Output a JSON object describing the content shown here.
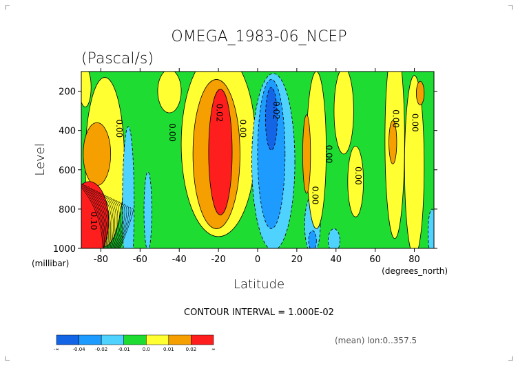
{
  "chart_data": {
    "type": "contour",
    "title": "OMEGA_1983-06_NCEP",
    "subtitle": "(Pascal/s)",
    "xlabel": "Latitude",
    "x_unit": "(degrees_north)",
    "ylabel": "Level",
    "y_unit": "(millibar)",
    "xlim": [
      -90,
      90
    ],
    "ylim": [
      1000,
      100
    ],
    "x_ticks": [
      -80,
      -60,
      -40,
      -20,
      0,
      20,
      40,
      60,
      80
    ],
    "y_ticks": [
      200,
      400,
      600,
      800,
      1000
    ],
    "contour_interval_text": "CONTOUR INTERVAL = 1.000E-02",
    "footer_text": "(mean) lon:0..357.5",
    "colorbar": {
      "labels": [
        "-∞",
        "-0.04",
        "-0.02",
        "-0.01",
        "0.0",
        "0.01",
        "0.02",
        "∞"
      ],
      "colors": [
        "#1464e6",
        "#1e9bff",
        "#50d2ff",
        "#1edc32",
        "#ffff32",
        "#f5a000",
        "#ff1e1e"
      ]
    },
    "contour_labels": [
      {
        "text": "0.00",
        "x": -72,
        "y": 390
      },
      {
        "text": "0.00",
        "x": -45,
        "y": 410
      },
      {
        "text": "0.02",
        "x": -21,
        "y": 310
      },
      {
        "text": "0.00",
        "x": -9,
        "y": 390
      },
      {
        "text": "-0.02",
        "x": 8,
        "y": 290
      },
      {
        "text": "0.00",
        "x": 28,
        "y": 730
      },
      {
        "text": "0.00",
        "x": 35,
        "y": 520
      },
      {
        "text": "0.00",
        "x": 50,
        "y": 630
      },
      {
        "text": "0.00",
        "x": 69,
        "y": 340
      },
      {
        "text": "0.00",
        "x": 79,
        "y": 360
      },
      {
        "text": "0.10",
        "x": -85,
        "y": 860
      }
    ],
    "regions": [
      {
        "level": "0.0",
        "color": "#ffff32",
        "cx": -78,
        "cy": 560,
        "rx": 10,
        "ry": 430
      },
      {
        "level": "0.01",
        "color": "#f5a000",
        "cx": -82,
        "cy": 520,
        "rx": 7,
        "ry": 160
      },
      {
        "level": "0.02",
        "color": "#ff1e1e",
        "cx": -86,
        "cy": 860,
        "rx": 10,
        "ry": 200
      },
      {
        "level": "-0.01",
        "color": "#50d2ff",
        "cx": -66,
        "cy": 780,
        "rx": 3,
        "ry": 400
      },
      {
        "level": "-0.01",
        "color": "#50d2ff",
        "cx": -56,
        "cy": 810,
        "rx": 2,
        "ry": 200
      },
      {
        "level": "0.0",
        "color": "#ffff32",
        "cx": -20,
        "cy": 470,
        "rx": 19,
        "ry": 470
      },
      {
        "level": "0.01",
        "color": "#f5a000",
        "cx": -21,
        "cy": 520,
        "rx": 12,
        "ry": 380
      },
      {
        "level": "0.02",
        "color": "#ff1e1e",
        "cx": -19,
        "cy": 510,
        "rx": 6,
        "ry": 320
      },
      {
        "level": "0.0",
        "color": "#ffff32",
        "cx": -45,
        "cy": 200,
        "rx": 6,
        "ry": 110
      },
      {
        "level": "-0.01",
        "color": "#50d2ff",
        "cx": 8,
        "cy": 560,
        "rx": 11,
        "ry": 450
      },
      {
        "level": "-0.02",
        "color": "#1e9bff",
        "cx": 7,
        "cy": 520,
        "rx": 7,
        "ry": 380
      },
      {
        "level": "-0.04",
        "color": "#1464e6",
        "cx": 7,
        "cy": 340,
        "rx": 3,
        "ry": 160
      },
      {
        "level": "-0.01",
        "color": "#50d2ff",
        "cx": 28,
        "cy": 880,
        "rx": 4,
        "ry": 150
      },
      {
        "level": "-0.02",
        "color": "#1e9bff",
        "cx": 28,
        "cy": 960,
        "rx": 2,
        "ry": 50
      },
      {
        "level": "-0.01",
        "color": "#50d2ff",
        "cx": 39,
        "cy": 960,
        "rx": 3,
        "ry": 60
      },
      {
        "level": "0.0",
        "color": "#ffff32",
        "cx": 30,
        "cy": 500,
        "rx": 5,
        "ry": 400
      },
      {
        "level": "0.01",
        "color": "#f5a000",
        "cx": 25,
        "cy": 520,
        "rx": 2,
        "ry": 200
      },
      {
        "level": "0.0",
        "color": "#ffff32",
        "cx": 44,
        "cy": 300,
        "rx": 5,
        "ry": 220
      },
      {
        "level": "0.0",
        "color": "#ffff32",
        "cx": 50,
        "cy": 660,
        "rx": 4,
        "ry": 180
      },
      {
        "level": "0.0",
        "color": "#ffff32",
        "cx": 70,
        "cy": 450,
        "rx": 5,
        "ry": 500
      },
      {
        "level": "0.01",
        "color": "#f5a000",
        "cx": 69,
        "cy": 460,
        "rx": 2,
        "ry": 110
      },
      {
        "level": "0.0",
        "color": "#ffff32",
        "cx": 80,
        "cy": 580,
        "rx": 5,
        "ry": 460
      },
      {
        "level": "0.01",
        "color": "#f5a000",
        "cx": 83,
        "cy": 210,
        "rx": 2,
        "ry": 60
      },
      {
        "level": "-0.01",
        "color": "#50d2ff",
        "cx": 89,
        "cy": 920,
        "rx": 2,
        "ry": 120
      },
      {
        "level": "0.0",
        "color": "#ffff32",
        "cx": -88,
        "cy": 180,
        "rx": 3,
        "ry": 100
      }
    ],
    "background_level": {
      "level": "-0.01 to 0.0",
      "color": "#1edc32"
    }
  }
}
